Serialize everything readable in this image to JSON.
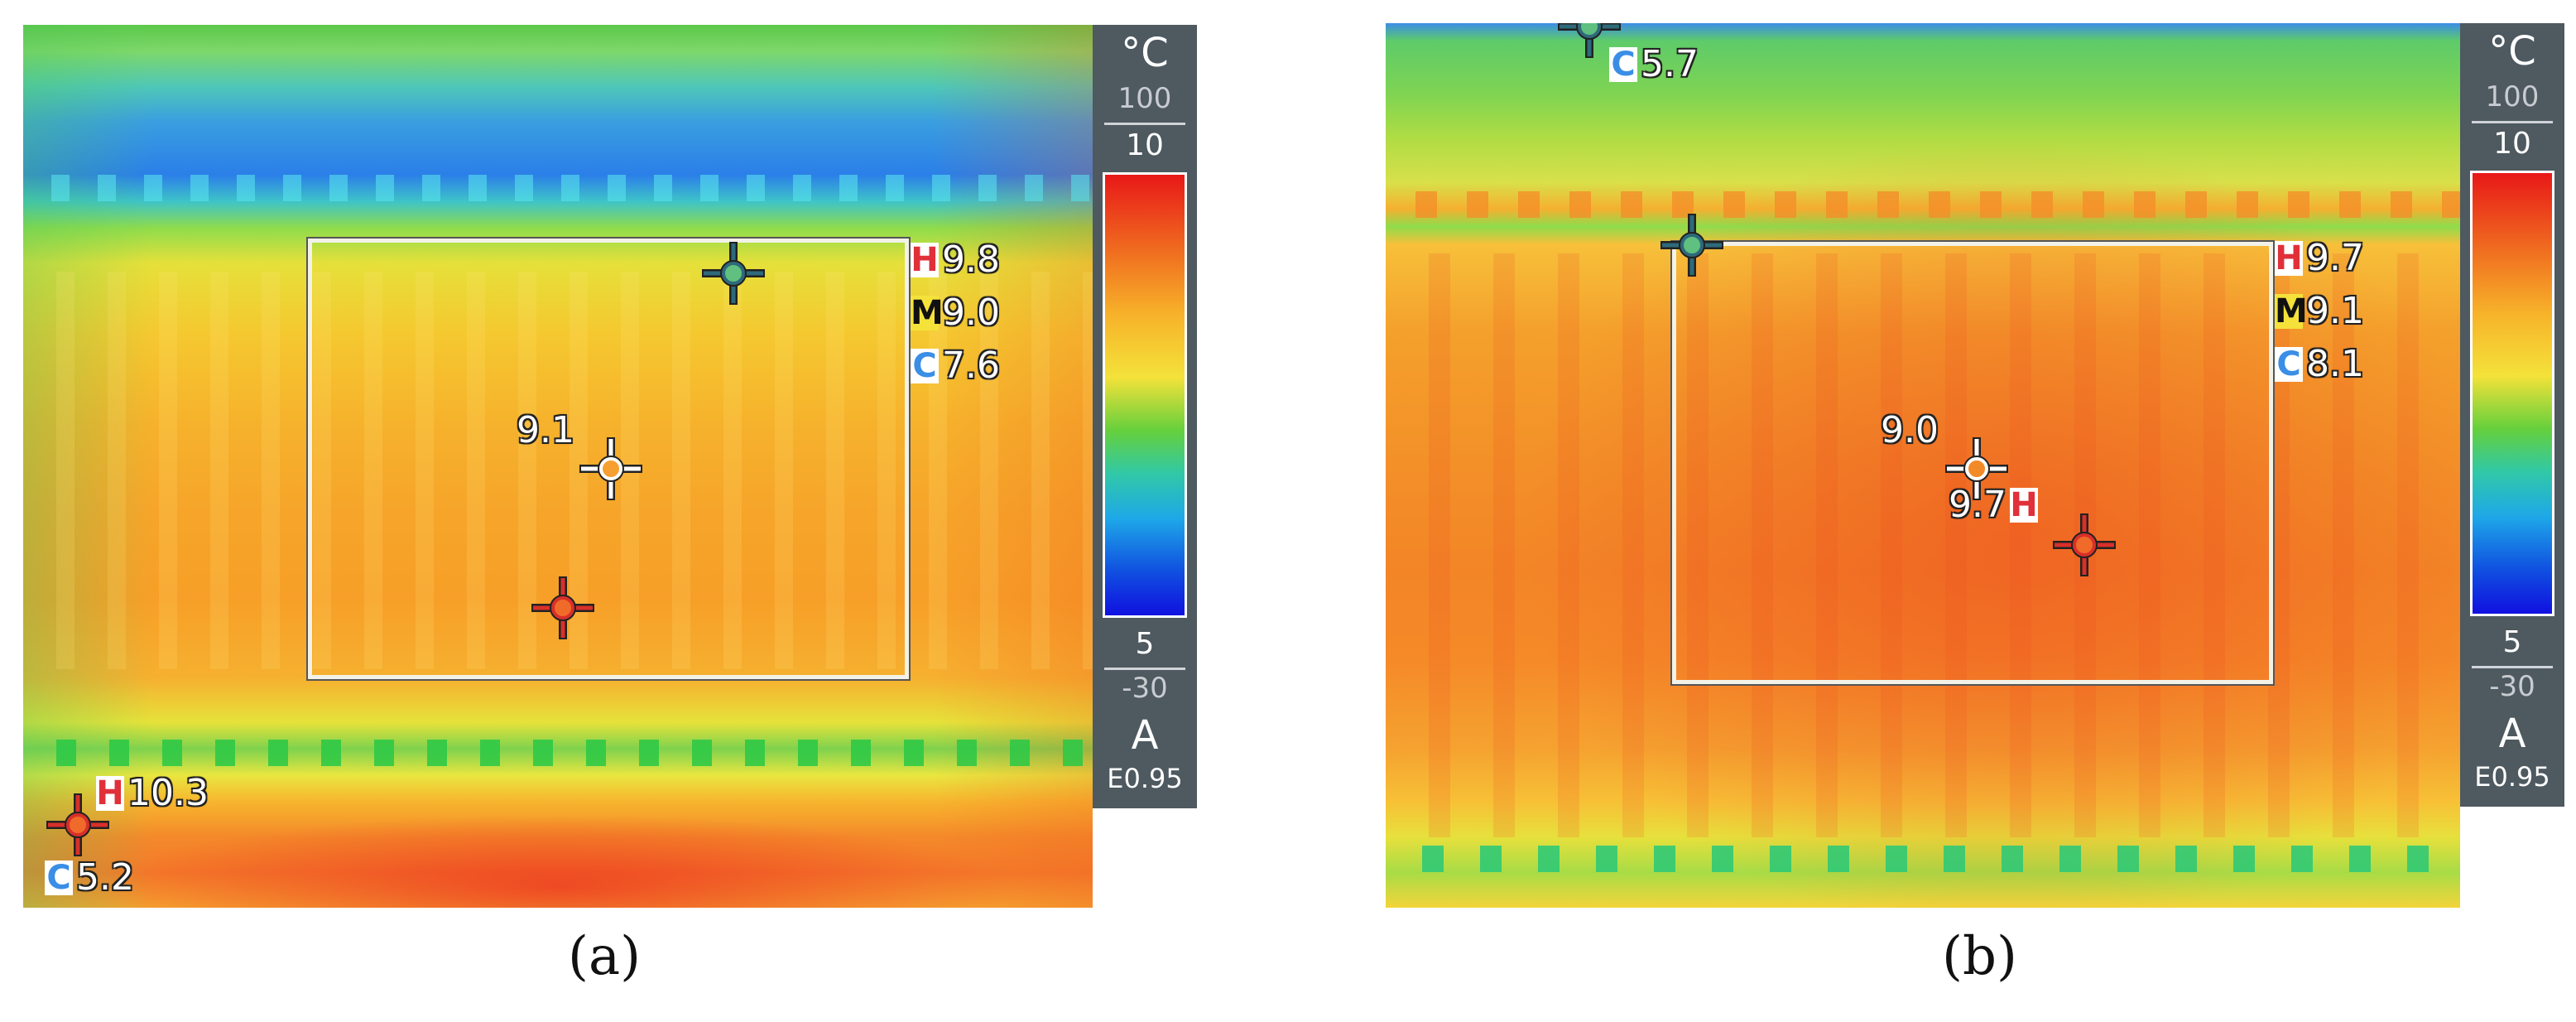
{
  "panels": [
    {
      "caption": "(a)",
      "box_stats": {
        "high_tag": "H",
        "high_value": "9.8",
        "mean_tag": "M",
        "mean_value": "9.0",
        "cold_tag": "C",
        "cold_value": "7.6"
      },
      "spot_center_value": "9.1",
      "frame_stats": {
        "high_tag": "H",
        "high_value": "10.3",
        "cold_tag": "C",
        "cold_value": "5.2"
      },
      "scale": {
        "unit": "°C",
        "range_max": "100",
        "top": "10",
        "bottom": "5",
        "range_min": "-30",
        "mode": "A",
        "emissivity": "E0.95"
      },
      "colors": {
        "box": "#f2f2e8",
        "hot_marker": "#d8302a",
        "cold_marker": "#2e6a7a",
        "center_marker": "#ffffff"
      }
    },
    {
      "caption": "(b)",
      "box_stats": {
        "high_tag": "H",
        "high_value": "9.7",
        "mean_tag": "M",
        "mean_value": "9.1",
        "cold_tag": "C",
        "cold_value": "8.1"
      },
      "spot_center_value": "9.0",
      "spot_hot_value": "9.7",
      "spot_hot_tag": "H",
      "frame_stats": {
        "cold_tag": "C",
        "cold_value": "5.7"
      },
      "scale": {
        "unit": "°C",
        "range_max": "100",
        "top": "10",
        "bottom": "5",
        "range_min": "-30",
        "mode": "A",
        "emissivity": "E0.95"
      },
      "colors": {
        "box": "#f2f2e8",
        "hot_marker": "#d8302a",
        "cold_marker": "#2e6a7a",
        "center_marker": "#ffffff"
      }
    }
  ]
}
